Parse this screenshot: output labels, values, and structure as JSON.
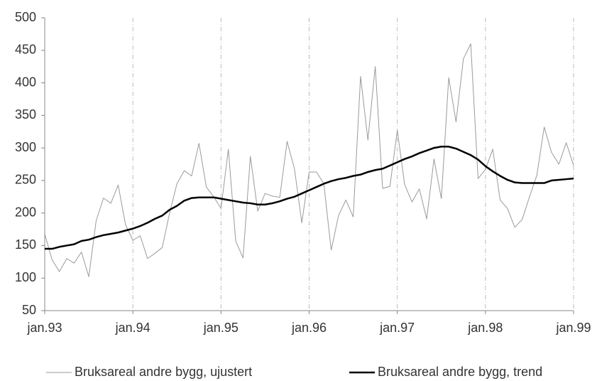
{
  "chart_data": {
    "type": "line",
    "categories": [
      "jan.93",
      null,
      null,
      null,
      null,
      null,
      null,
      null,
      null,
      null,
      null,
      null,
      "jan.94",
      null,
      null,
      null,
      null,
      null,
      null,
      null,
      null,
      null,
      null,
      null,
      "jan.95",
      null,
      null,
      null,
      null,
      null,
      null,
      null,
      null,
      null,
      null,
      null,
      "jan.96",
      null,
      null,
      null,
      null,
      null,
      null,
      null,
      null,
      null,
      null,
      null,
      "jan.97",
      null,
      null,
      null,
      null,
      null,
      null,
      null,
      null,
      null,
      null,
      null,
      "jan.98",
      null,
      null,
      null,
      null,
      null,
      null,
      null,
      null,
      null,
      null,
      null,
      "jan.99"
    ],
    "series": [
      {
        "name": "Bruksareal andre bygg, ujustert",
        "color": "#9a9a9a",
        "width": 1,
        "values": [
          168,
          128,
          110,
          130,
          123,
          140,
          102,
          188,
          223,
          215,
          243,
          182,
          158,
          165,
          130,
          138,
          147,
          200,
          245,
          265,
          257,
          307,
          240,
          225,
          207,
          298,
          157,
          131,
          287,
          203,
          230,
          226,
          224,
          310,
          268,
          185,
          263,
          263,
          245,
          143,
          196,
          220,
          194,
          410,
          312,
          425,
          238,
          241,
          327,
          244,
          217,
          237,
          191,
          283,
          222,
          408,
          340,
          437,
          460,
          253,
          267,
          298,
          220,
          207,
          178,
          190,
          225,
          258,
          332,
          293,
          275,
          308,
          273
        ]
      },
      {
        "name": "Bruksareal andre bygg, trend",
        "color": "#000000",
        "width": 2.5,
        "values": [
          145,
          145,
          148,
          150,
          152,
          157,
          159,
          163,
          166,
          168,
          170,
          173,
          176,
          180,
          185,
          191,
          196,
          205,
          211,
          219,
          223,
          224,
          224,
          224,
          222,
          220,
          218,
          216,
          215,
          213,
          213,
          215,
          218,
          222,
          225,
          230,
          235,
          240,
          245,
          249,
          252,
          254,
          257,
          259,
          263,
          266,
          268,
          273,
          278,
          283,
          287,
          292,
          296,
          300,
          302,
          302,
          299,
          294,
          289,
          282,
          272,
          264,
          257,
          251,
          247,
          246,
          246,
          246,
          246,
          250,
          251,
          252,
          253
        ]
      }
    ],
    "ylim": [
      50,
      500
    ],
    "yticks": [
      50,
      100,
      150,
      200,
      250,
      300,
      350,
      400,
      450,
      500
    ],
    "grid": "x",
    "legend": "bottom"
  }
}
